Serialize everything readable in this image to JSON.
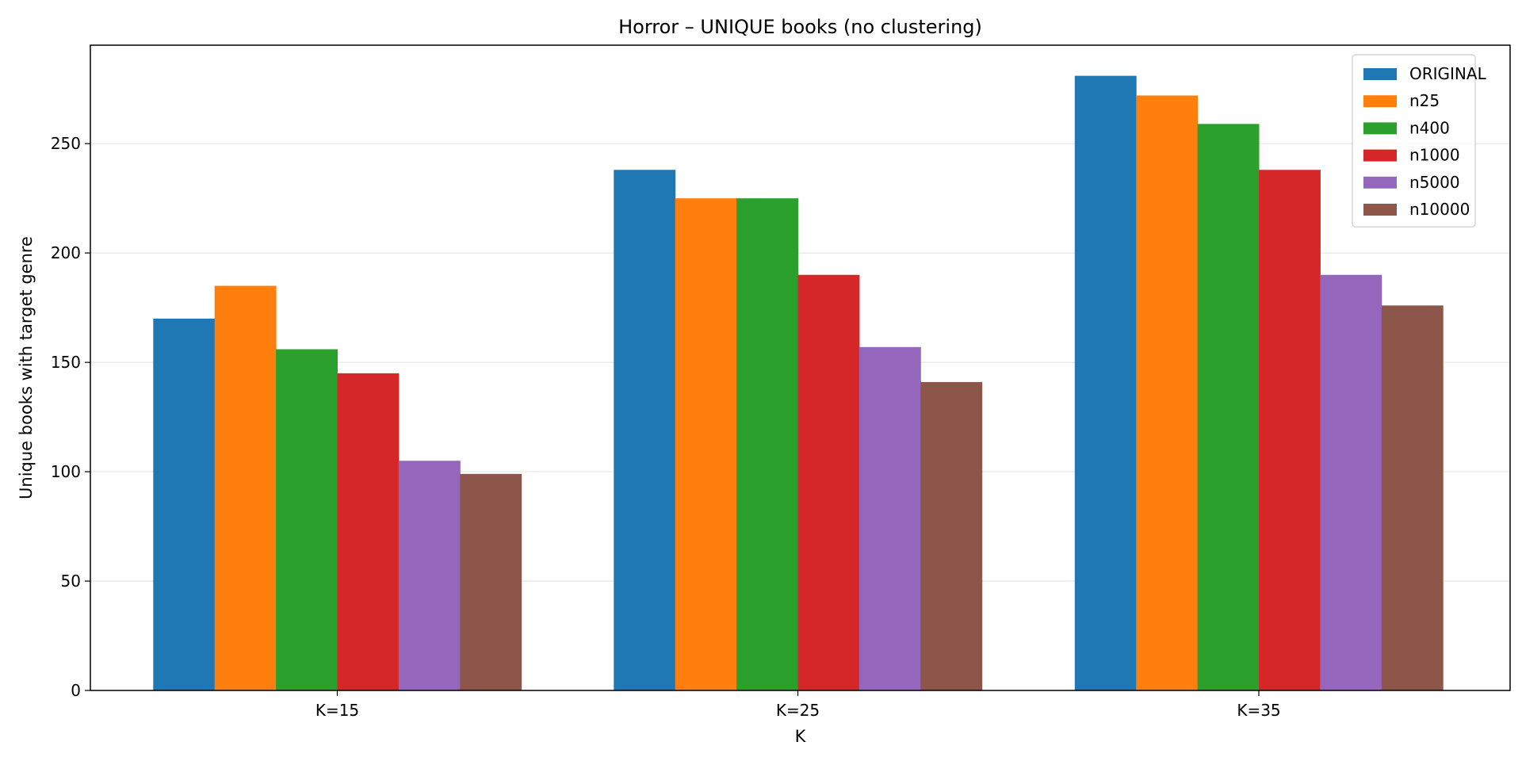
{
  "chart_data": {
    "type": "bar",
    "title": "Horror – UNIQUE books (no clustering)",
    "xlabel": "K",
    "ylabel": "Unique books with target genre",
    "categories": [
      "K=15",
      "K=25",
      "K=35"
    ],
    "ylim": [
      0,
      295
    ],
    "yticks": [
      0,
      50,
      100,
      150,
      200,
      250
    ],
    "grid": "horizontal",
    "legend_position": "top-right",
    "series": [
      {
        "name": "ORIGINAL",
        "color": "#1f77b4",
        "values": [
          170,
          238,
          281
        ]
      },
      {
        "name": "n25",
        "color": "#ff7f0e",
        "values": [
          185,
          225,
          272
        ]
      },
      {
        "name": "n400",
        "color": "#2ca02c",
        "values": [
          156,
          225,
          259
        ]
      },
      {
        "name": "n1000",
        "color": "#d62728",
        "values": [
          145,
          190,
          238
        ]
      },
      {
        "name": "n5000",
        "color": "#9467bd",
        "values": [
          105,
          157,
          190
        ]
      },
      {
        "name": "n10000",
        "color": "#8c564b",
        "values": [
          99,
          141,
          176
        ]
      }
    ]
  }
}
